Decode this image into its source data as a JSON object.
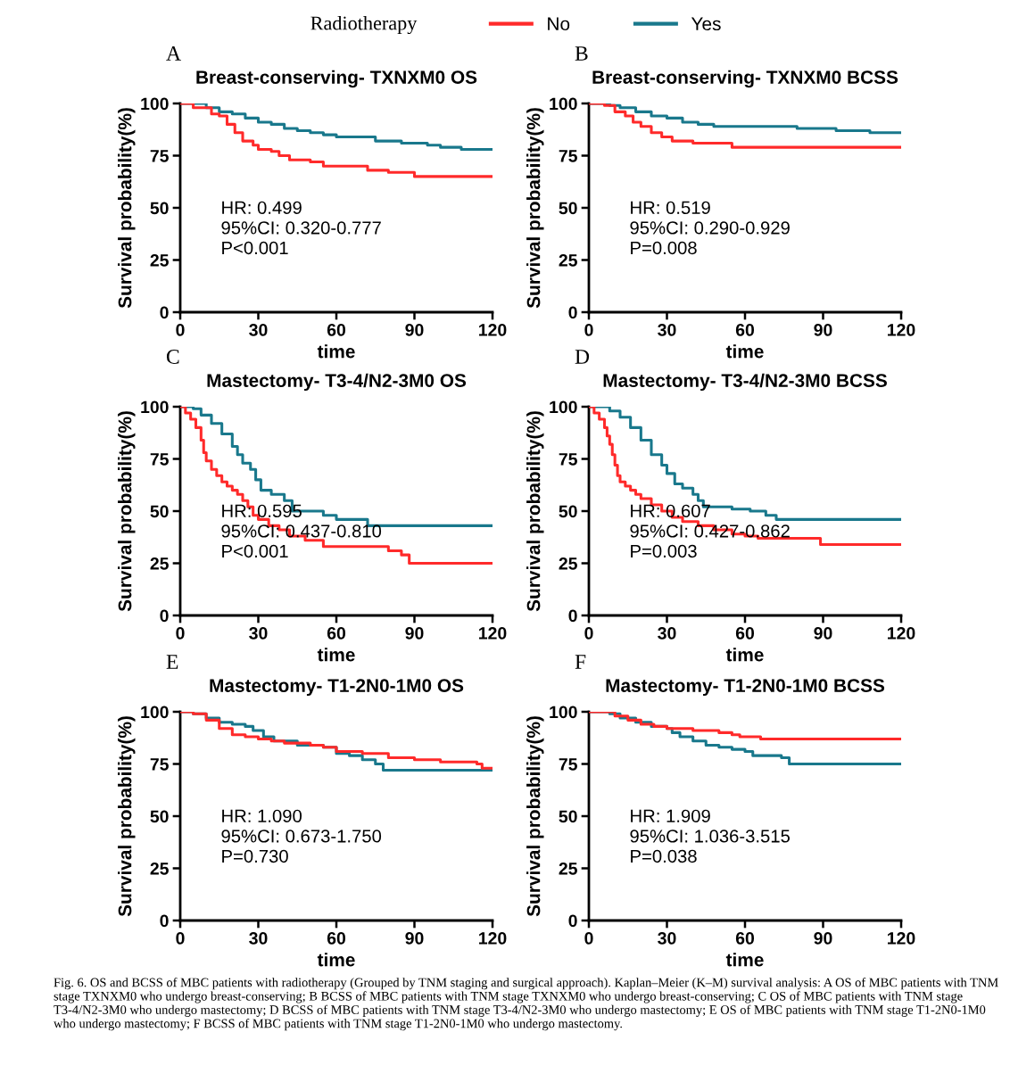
{
  "chart_data": [
    {
      "type": "step",
      "title": "Breast-conserving- TXNXM0 OS",
      "xlabel": "time",
      "ylabel": "Survival probability(%)",
      "xlim": [
        0,
        120
      ],
      "ylim": [
        0,
        100
      ],
      "xticks": [
        0,
        30,
        60,
        90,
        120
      ],
      "yticks": [
        0,
        25,
        50,
        75,
        100
      ],
      "grid": false,
      "legend": "top",
      "legend_title": "Radiotherapy",
      "annotations": [
        "A",
        "HR: 0.499\n95%CI: 0.320-0.777\nP<0.001"
      ],
      "series": [
        {
          "name": "No",
          "color": "#ff2a2a",
          "x": [
            0,
            5,
            10,
            12,
            15,
            18,
            21,
            24,
            28,
            30,
            35,
            38,
            42,
            50,
            55,
            72,
            80,
            90,
            120
          ],
          "values": [
            100,
            98,
            98,
            95,
            94,
            90,
            86,
            82,
            80,
            78,
            77,
            75,
            73,
            72,
            70,
            68,
            67,
            65,
            65
          ]
        },
        {
          "name": "Yes",
          "color": "#19788c",
          "x": [
            0,
            6,
            10,
            15,
            20,
            25,
            30,
            35,
            40,
            45,
            50,
            55,
            60,
            75,
            85,
            95,
            100,
            108,
            120
          ],
          "values": [
            100,
            100,
            98,
            96,
            95,
            93,
            91,
            90,
            88,
            87,
            86,
            85,
            84,
            82,
            81,
            80,
            79,
            78,
            78
          ]
        }
      ]
    },
    {
      "type": "step",
      "title": "Breast-conserving- TXNXM0 BCSS",
      "xlabel": "time",
      "ylabel": "Survival probability(%)",
      "xlim": [
        0,
        120
      ],
      "ylim": [
        0,
        100
      ],
      "xticks": [
        0,
        30,
        60,
        90,
        120
      ],
      "yticks": [
        0,
        25,
        50,
        75,
        100
      ],
      "grid": false,
      "annotations": [
        "B",
        "HR: 0.519\n95%CI: 0.290-0.929\nP=0.008"
      ],
      "series": [
        {
          "color": "#ff2a2a",
          "x": [
            0,
            6,
            10,
            14,
            17,
            20,
            24,
            28,
            32,
            40,
            55,
            120
          ],
          "values": [
            100,
            99,
            96,
            94,
            91,
            89,
            86,
            84,
            82,
            81,
            79,
            79
          ]
        },
        {
          "color": "#19788c",
          "x": [
            0,
            8,
            12,
            18,
            24,
            30,
            36,
            42,
            48,
            80,
            95,
            108,
            120
          ],
          "values": [
            100,
            99,
            98,
            96,
            94,
            93,
            91,
            90,
            89,
            88,
            87,
            86,
            86
          ]
        }
      ]
    },
    {
      "type": "step",
      "title": "Mastectomy- T3-4/N2-3M0 OS",
      "xlabel": "time",
      "ylabel": "Survival probability(%)",
      "xlim": [
        0,
        120
      ],
      "ylim": [
        0,
        100
      ],
      "xticks": [
        0,
        30,
        60,
        90,
        120
      ],
      "yticks": [
        0,
        25,
        50,
        75,
        100
      ],
      "grid": false,
      "annotations": [
        "C",
        "HR: 0.595\n95%CI: 0.437-0.810\nP<0.001"
      ],
      "series": [
        {
          "color": "#ff2a2a",
          "x": [
            0,
            2,
            4,
            6,
            8,
            9,
            10,
            12,
            14,
            16,
            18,
            20,
            22,
            24,
            26,
            28,
            30,
            34,
            38,
            42,
            48,
            55,
            80,
            85,
            88,
            120
          ],
          "values": [
            100,
            97,
            94,
            90,
            84,
            78,
            74,
            70,
            67,
            64,
            62,
            60,
            58,
            55,
            52,
            48,
            46,
            43,
            41,
            38,
            36,
            33,
            31,
            29,
            25,
            25
          ]
        },
        {
          "color": "#19788c",
          "x": [
            0,
            5,
            8,
            12,
            16,
            20,
            22,
            24,
            27,
            29,
            31,
            35,
            40,
            43,
            55,
            60,
            72,
            120
          ],
          "values": [
            100,
            99,
            96,
            92,
            87,
            81,
            77,
            73,
            70,
            65,
            60,
            58,
            55,
            50,
            48,
            46,
            43,
            43
          ]
        }
      ]
    },
    {
      "type": "step",
      "title": "Mastectomy- T3-4/N2-3M0 BCSS",
      "xlabel": "time",
      "ylabel": "Survival probability(%)",
      "xlim": [
        0,
        120
      ],
      "ylim": [
        0,
        100
      ],
      "xticks": [
        0,
        30,
        60,
        90,
        120
      ],
      "yticks": [
        0,
        25,
        50,
        75,
        100
      ],
      "grid": false,
      "annotations": [
        "D",
        "HR: 0.607\n95%CI: 0.427-0.862\nP=0.003"
      ],
      "series": [
        {
          "color": "#ff2a2a",
          "x": [
            0,
            2,
            4,
            6,
            7,
            8,
            9,
            10,
            11,
            12,
            14,
            16,
            18,
            20,
            24,
            28,
            32,
            36,
            42,
            48,
            55,
            60,
            65,
            89,
            120
          ],
          "values": [
            100,
            97,
            94,
            90,
            86,
            82,
            77,
            72,
            67,
            64,
            62,
            60,
            58,
            56,
            53,
            50,
            47,
            45,
            43,
            41,
            39,
            38,
            37,
            34,
            34
          ]
        },
        {
          "color": "#19788c",
          "x": [
            0,
            5,
            8,
            12,
            16,
            20,
            24,
            28,
            30,
            33,
            36,
            40,
            42,
            44,
            55,
            62,
            68,
            72,
            120
          ],
          "values": [
            100,
            100,
            98,
            95,
            90,
            84,
            77,
            72,
            68,
            63,
            61,
            58,
            55,
            52,
            51,
            50,
            48,
            46,
            46
          ]
        }
      ]
    },
    {
      "type": "step",
      "title": "Mastectomy- T1-2N0-1M0 OS",
      "xlabel": "time",
      "ylabel": "Survival probability(%)",
      "xlim": [
        0,
        120
      ],
      "ylim": [
        0,
        100
      ],
      "xticks": [
        0,
        30,
        60,
        90,
        120
      ],
      "yticks": [
        0,
        25,
        50,
        75,
        100
      ],
      "grid": false,
      "annotations": [
        "E",
        "HR: 1.090\n95%CI: 0.673-1.750\nP=0.730"
      ],
      "series": [
        {
          "color": "#ff2a2a",
          "x": [
            0,
            5,
            10,
            15,
            20,
            25,
            30,
            35,
            40,
            50,
            55,
            60,
            70,
            80,
            90,
            100,
            114,
            116,
            120
          ],
          "values": [
            100,
            99,
            96,
            92,
            89,
            88,
            87,
            86,
            85,
            84,
            83,
            81,
            80,
            78,
            77,
            76,
            75,
            73,
            73
          ]
        },
        {
          "color": "#19788c",
          "x": [
            0,
            5,
            10,
            15,
            20,
            25,
            28,
            32,
            36,
            45,
            55,
            60,
            65,
            70,
            75,
            78,
            120
          ],
          "values": [
            100,
            99,
            97,
            95,
            94,
            93,
            91,
            88,
            86,
            84,
            83,
            80,
            79,
            77,
            75,
            72,
            72
          ]
        }
      ]
    },
    {
      "type": "step",
      "title": "Mastectomy- T1-2N0-1M0 BCSS",
      "xlabel": "time",
      "ylabel": "Survival probability(%)",
      "xlim": [
        0,
        120
      ],
      "ylim": [
        0,
        100
      ],
      "xticks": [
        0,
        30,
        60,
        90,
        120
      ],
      "yticks": [
        0,
        25,
        50,
        75,
        100
      ],
      "grid": false,
      "annotations": [
        "F",
        "HR: 1.909\n95%CI: 1.036-3.515\nP=0.038",
        "Fig. 6. OS and BCSS of MBC patients with radiotherapy (Grouped by TNM staging and surgical approach). Kaplan–Meier (K–M) survival analysis: A OS of MBC patients with TNM stage TXNXM0 who undergo breast-conserving; B BCSS of MBC patients with TNM stage TXNXM0 who undergo breast-conserving; C OS of MBC patients with TNM stage T3-4/N2-3M0 who undergo mastectomy; D BCSS of MBC patients with TNM stage T3-4/N2-3M0 who undergo mastectomy; E OS of MBC patients with TNM stage T1-2N0-1M0 who undergo mastectomy; F BCSS of MBC patients with TNM stage T1-2N0-1M0 who undergo mastectomy."
      ],
      "series": [
        {
          "color": "#ff2a2a",
          "x": [
            0,
            10,
            15,
            20,
            25,
            30,
            40,
            50,
            55,
            58,
            66,
            120
          ],
          "values": [
            100,
            98,
            96,
            94,
            93,
            92,
            91,
            90,
            89,
            88,
            87,
            87
          ]
        },
        {
          "color": "#19788c",
          "x": [
            0,
            8,
            12,
            18,
            24,
            30,
            32,
            35,
            40,
            45,
            50,
            55,
            60,
            63,
            74,
            77,
            120
          ],
          "values": [
            100,
            99,
            97,
            95,
            93,
            92,
            90,
            88,
            86,
            84,
            83,
            82,
            81,
            79,
            78,
            75,
            75
          ]
        }
      ]
    }
  ]
}
